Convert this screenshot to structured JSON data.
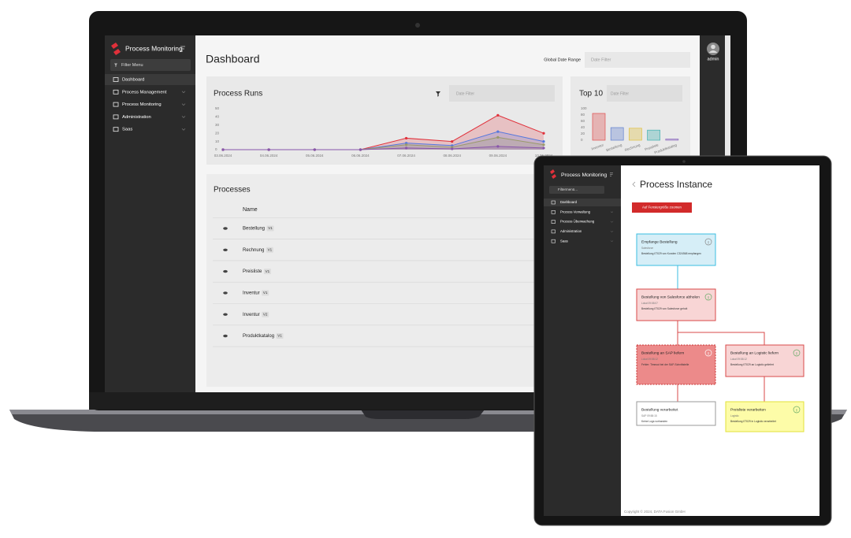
{
  "laptop": {
    "brand": "Process Monitoring",
    "filter": "Filter Menu",
    "nav": [
      "Dashboard",
      "Process Management",
      "Process Monitoring",
      "Administration",
      "Saas"
    ],
    "user": "admin",
    "header": {
      "title": "Dashboard",
      "date_range_label": "Global Date Range",
      "date_filter": "Date Filter"
    },
    "process_runs": {
      "type": "line",
      "title": "Process Runs",
      "date_filter": "Date Filter",
      "x": [
        "03.06.2024",
        "04.06.2024",
        "05.06.2024",
        "06.06.2024",
        "07.06.2024",
        "08.06.2024",
        "09.06.2024",
        "10.06.2024"
      ],
      "ylim": [
        0,
        50
      ],
      "yticks": [
        0,
        10,
        20,
        30,
        40,
        50
      ],
      "series": [
        {
          "color": "#e0303a",
          "values": [
            0,
            0,
            0,
            0,
            14,
            10,
            42,
            20
          ]
        },
        {
          "color": "#5577dd",
          "values": [
            0,
            0,
            0,
            0,
            8,
            5,
            22,
            10
          ]
        },
        {
          "color": "#9a9a6a",
          "values": [
            0,
            0,
            0,
            0,
            6,
            3,
            15,
            6
          ]
        },
        {
          "color": "#8855aa",
          "values": [
            0,
            0,
            0,
            0,
            2,
            1,
            4,
            2
          ]
        }
      ]
    },
    "top10": {
      "type": "bar",
      "title": "Top 10",
      "date_filter": "Date Filter",
      "categories": [
        "Inventur",
        "Bestellung",
        "Rechnung",
        "Preisliste",
        "Produktkatalog"
      ],
      "values": [
        85,
        40,
        38,
        32,
        4
      ],
      "colors": [
        "#e05050",
        "#6080d0",
        "#e0c040",
        "#40b0b0",
        "#9070c0"
      ],
      "ylim": [
        0,
        100
      ],
      "yticks": [
        0,
        20,
        40,
        60,
        80,
        100
      ]
    },
    "processes": {
      "title": "Processes",
      "column": "Name",
      "rows": [
        {
          "name": "Bestellung",
          "version": "V1"
        },
        {
          "name": "Rechnung",
          "version": "V1"
        },
        {
          "name": "Preisliste",
          "version": "V1"
        },
        {
          "name": "Inventur",
          "version": "V1"
        },
        {
          "name": "Inventur",
          "version": "V2"
        },
        {
          "name": "Produktkatalog",
          "version": "V1"
        }
      ]
    }
  },
  "tablet": {
    "brand": "Process Monitoring",
    "filter": "Filtermenü...",
    "nav": [
      "Dashboard",
      "Prozess Verwaltung",
      "Prozess Überwachung",
      "Administration",
      "Saas"
    ],
    "title": "Process Instance",
    "button": "Auf Fenstergröße zoomen",
    "nodes": [
      {
        "title": "Empfange Bestellung",
        "subtitle": "Salesforce",
        "text": "Bestellung 0T029 von Kunden C324568 empfangen"
      },
      {
        "title": "Bestellung von Salesforce abholen",
        "subtitle": "Lokal 09:58:07",
        "text": "Bestellung 0T029 von Salesforce geholt"
      },
      {
        "title": "Bestellung an SAP liefern",
        "subtitle": "Lokal 09:58:12",
        "text": "Fehler: Timeout bei der SAP-Schnittstelle"
      },
      {
        "title": "Bestellung an Logistic liefern",
        "subtitle": "Lokal 09:58:12",
        "text": "Bestellung 0T029 an Logistic geliefert"
      },
      {
        "title": "Bestellung verarbeitet",
        "subtitle": "SAP 09:58:15",
        "text": "Keine Logs vorhanden"
      },
      {
        "title": "Preisliste verarbeiten",
        "subtitle": "Logistic",
        "text": "Bestellung 0T029 in Logistic verarbeitet"
      }
    ],
    "footer": "Copyright © 2024, DATA Fusion GmbH"
  }
}
